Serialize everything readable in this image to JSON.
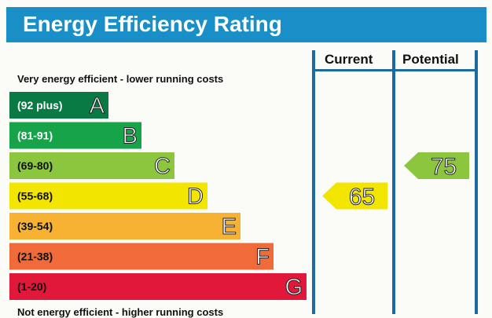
{
  "title": "Energy Efficiency Rating",
  "columns": {
    "current": "Current",
    "potential": "Potential"
  },
  "notes": {
    "top": "Very energy efficient - lower running costs",
    "bottom": "Not energy efficient - higher running costs"
  },
  "colors": {
    "header": "#1a8fc7",
    "column_lines": "#1d6aa2"
  },
  "chart_data": {
    "type": "bar",
    "title": "Energy Efficiency Rating",
    "categories": [
      "A",
      "B",
      "C",
      "D",
      "E",
      "F",
      "G"
    ],
    "bands": [
      {
        "letter": "A",
        "range": "(92 plus)",
        "color": "#0a7a44",
        "label_color": "#ffffff"
      },
      {
        "letter": "B",
        "range": "(81-91)",
        "color": "#17a34a",
        "label_color": "#ffffff"
      },
      {
        "letter": "C",
        "range": "(69-80)",
        "color": "#8cc63e",
        "label_color": "#111111"
      },
      {
        "letter": "D",
        "range": "(55-68)",
        "color": "#f2e500",
        "label_color": "#111111"
      },
      {
        "letter": "E",
        "range": "(39-54)",
        "color": "#f7b233",
        "label_color": "#111111"
      },
      {
        "letter": "F",
        "range": "(21-38)",
        "color": "#f06a3a",
        "label_color": "#111111"
      },
      {
        "letter": "G",
        "range": "(1-20)",
        "color": "#e2183b",
        "label_color": "#111111"
      }
    ],
    "series": [
      {
        "name": "Current",
        "value": 65,
        "band": "D",
        "color": "#f2e500"
      },
      {
        "name": "Potential",
        "value": 75,
        "band": "C",
        "color": "#8cc63e"
      }
    ]
  }
}
